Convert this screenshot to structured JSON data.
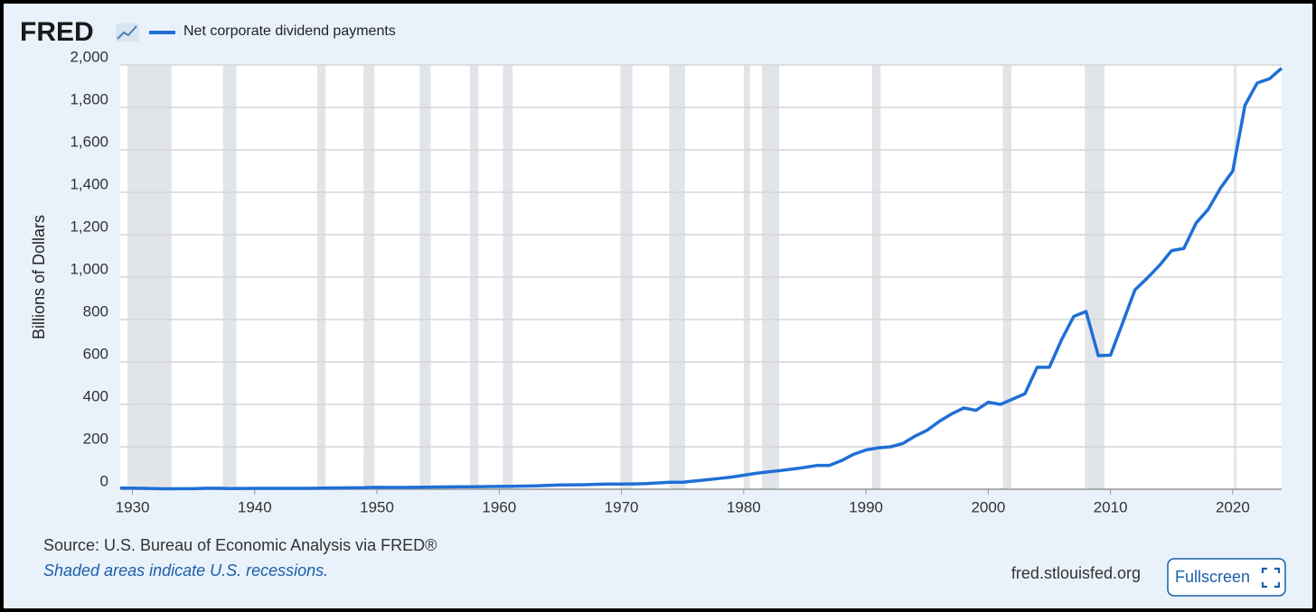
{
  "chart_data": {
    "type": "line",
    "logo": "FRED",
    "y_label": "Billions of Dollars",
    "source": "Source: U.S. Bureau of Economic Analysis via FRED®",
    "note": "Shaded areas indicate U.S. recessions.",
    "site": "fred.stlouisfed.org",
    "button": "Fullscreen",
    "x": [
      1929,
      1930,
      1931,
      1932,
      1933,
      1934,
      1935,
      1936,
      1937,
      1938,
      1939,
      1940,
      1941,
      1942,
      1943,
      1944,
      1945,
      1946,
      1947,
      1948,
      1949,
      1950,
      1951,
      1952,
      1953,
      1954,
      1955,
      1956,
      1957,
      1958,
      1959,
      1960,
      1961,
      1962,
      1963,
      1964,
      1965,
      1966,
      1967,
      1968,
      1969,
      1970,
      1971,
      1972,
      1973,
      1974,
      1975,
      1976,
      1977,
      1978,
      1979,
      1980,
      1981,
      1982,
      1983,
      1984,
      1985,
      1986,
      1987,
      1988,
      1989,
      1990,
      1991,
      1992,
      1993,
      1994,
      1995,
      1996,
      1997,
      1998,
      1999,
      2000,
      2001,
      2002,
      2003,
      2004,
      2005,
      2006,
      2007,
      2008,
      2009,
      2010,
      2011,
      2012,
      2013,
      2014,
      2015,
      2016,
      2017,
      2018,
      2019,
      2020,
      2021,
      2022,
      2023,
      2024
    ],
    "series": [
      {
        "name": "Net corporate dividend payments",
        "color": "#1f6fd6",
        "values": [
          6,
          5.5,
          4.1,
          2.5,
          2.1,
          2.6,
          2.9,
          4.6,
          4.7,
          3.2,
          3.8,
          4,
          4.4,
          4.2,
          4.3,
          4.4,
          4.6,
          5.6,
          6.3,
          7,
          7.2,
          8.8,
          8.6,
          8.6,
          8.9,
          9.3,
          10.5,
          11.3,
          11.7,
          11.6,
          12.6,
          13.4,
          13.9,
          15,
          16.2,
          18,
          20.2,
          20.7,
          21.5,
          23.5,
          24.2,
          24.3,
          25,
          26.8,
          29.9,
          33.2,
          33,
          39,
          44.8,
          50.8,
          57.5,
          66,
          75,
          82,
          88,
          95,
          103,
          112,
          112,
          135,
          165,
          185,
          195,
          200,
          215,
          250,
          278,
          320,
          355,
          383,
          372,
          410,
          400,
          425,
          450,
          575,
          575,
          705,
          815,
          838,
          630,
          632,
          785,
          940,
          995,
          1055,
          1125,
          1135,
          1255,
          1320,
          1420,
          1500,
          1810,
          1915,
          1935,
          1985
        ]
      }
    ],
    "recessions": [
      [
        1929.6,
        1933.2
      ],
      [
        1937.4,
        1938.5
      ],
      [
        1945.1,
        1945.8
      ],
      [
        1948.9,
        1949.8
      ],
      [
        1953.5,
        1954.4
      ],
      [
        1957.6,
        1958.3
      ],
      [
        1960.3,
        1961.1
      ],
      [
        1969.9,
        1970.9
      ],
      [
        1973.9,
        1975.2
      ],
      [
        1980.0,
        1980.5
      ],
      [
        1981.5,
        1982.9
      ],
      [
        1990.5,
        1991.2
      ],
      [
        2001.2,
        2001.9
      ],
      [
        2007.9,
        2009.5
      ],
      [
        2020.1,
        2020.3
      ]
    ],
    "xlim": [
      1929,
      2024
    ],
    "xticks": [
      1930,
      1940,
      1950,
      1960,
      1970,
      1980,
      1990,
      2000,
      2010,
      2020
    ],
    "ylim": [
      0,
      2000
    ],
    "yticks": [
      0,
      200,
      400,
      600,
      800,
      {
        "value": 1000,
        "label": "1,000"
      },
      {
        "value": 1200,
        "label": "1,200"
      },
      {
        "value": 1400,
        "label": "1,400"
      },
      {
        "value": 1600,
        "label": "1,600"
      },
      {
        "value": 1800,
        "label": "1,800"
      },
      {
        "value": 2000,
        "label": "2,000"
      }
    ],
    "grid": true
  }
}
